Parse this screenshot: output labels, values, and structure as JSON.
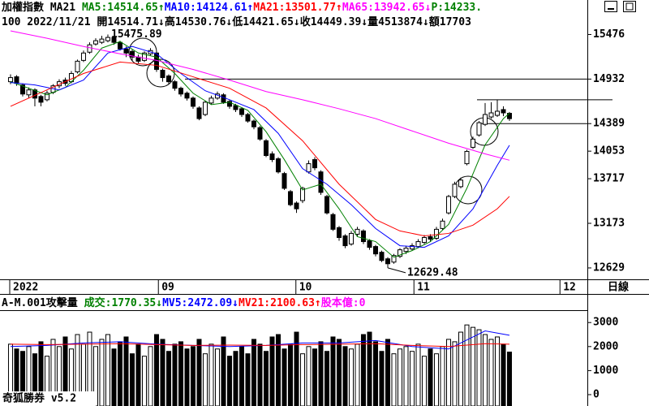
{
  "header": {
    "line1": [
      {
        "text": "加權指數 MA21 ",
        "color": "#000000"
      },
      {
        "text": "MA5:14514.65↑",
        "color": "#008000"
      },
      {
        "text": "MA10:14124.61↑",
        "color": "#0000ff"
      },
      {
        "text": "MA21:13501.77↑",
        "color": "#ff0000"
      },
      {
        "text": "MA65:13942.65↓",
        "color": "#ff00ff"
      },
      {
        "text": "P:14233.",
        "color": "#008000"
      }
    ],
    "line2": [
      {
        "text": "100 2022/11/21 開14514.71↓高14530.76↓低14421.65↓收14449.39↓量4513874↓額17703",
        "color": "#000000"
      }
    ],
    "volume_line": [
      {
        "text": "A-M.001攻擊量 ",
        "color": "#000000"
      },
      {
        "text": "成交:1770.35↓",
        "color": "#008000"
      },
      {
        "text": "MV5:2472.09↓",
        "color": "#0000ff"
      },
      {
        "text": "MV21:2100.63↑",
        "color": "#ff0000"
      },
      {
        "text": "股本億:0",
        "color": "#ff00ff"
      }
    ],
    "period": "日線",
    "app": "奇狐勝券 v5.2"
  },
  "chart_data": [
    {
      "type": "candlestick",
      "open": [
        14900,
        14960,
        14860,
        14740,
        14800,
        14720,
        14680,
        14770,
        14850,
        14920,
        14900,
        15020,
        15160,
        15260,
        15360,
        15380,
        15400,
        15440,
        15380,
        15300,
        15270,
        15200,
        15160,
        15240,
        15250,
        15040,
        14970,
        14900,
        14820,
        14760,
        14700,
        14580,
        14500,
        14640,
        14700,
        14740,
        14660,
        14610,
        14570,
        14500,
        14420,
        14340,
        14180,
        14020,
        13960,
        13780,
        13560,
        13420,
        13450,
        13800,
        13950,
        13800,
        13500,
        13280,
        13120,
        13020,
        12920,
        13040,
        13080,
        12960,
        12890,
        12820,
        12740,
        12700,
        12770,
        12830,
        12860,
        12890,
        12940,
        13010,
        12990,
        13110,
        13300,
        13500,
        13620,
        13900,
        14100,
        14250,
        14380,
        14470,
        14490,
        14560,
        14514.71
      ],
      "high": [
        14990,
        14980,
        14880,
        14830,
        14820,
        14740,
        14790,
        14870,
        14930,
        14950,
        15030,
        15170,
        15280,
        15380,
        15430,
        15460,
        15475.89,
        15460,
        15400,
        15330,
        15290,
        15230,
        15270,
        15310,
        15260,
        15060,
        14990,
        14920,
        14840,
        14780,
        14720,
        14600,
        14670,
        14730,
        14780,
        14760,
        14680,
        14630,
        14590,
        14520,
        14440,
        14360,
        14200,
        14050,
        13980,
        13800,
        13580,
        13440,
        13620,
        13940,
        13980,
        13820,
        13520,
        13300,
        13140,
        13040,
        13080,
        13130,
        13100,
        12980,
        12910,
        12840,
        12760,
        12800,
        12870,
        12900,
        12930,
        12980,
        13030,
        13040,
        13130,
        13230,
        13520,
        13680,
        13730,
        14070,
        14230,
        14420,
        14640,
        14650,
        14680,
        14600,
        14530.76
      ],
      "low": [
        14870,
        14850,
        14720,
        14700,
        14600,
        14600,
        14660,
        14750,
        14820,
        14850,
        14880,
        15000,
        15140,
        15240,
        15340,
        15360,
        15380,
        15350,
        15280,
        15200,
        15150,
        15120,
        15140,
        15220,
        15020,
        14900,
        14870,
        14790,
        14720,
        14670,
        14570,
        14430,
        14480,
        14620,
        14680,
        14630,
        14570,
        14530,
        14470,
        14400,
        14320,
        14180,
        13980,
        13920,
        13780,
        13580,
        13380,
        13300,
        13420,
        13780,
        13820,
        13520,
        13280,
        13080,
        12960,
        12870,
        12900,
        13010,
        12920,
        12850,
        12770,
        12700,
        12629.48,
        12680,
        12750,
        12800,
        12840,
        12870,
        12920,
        12950,
        12970,
        13090,
        13280,
        13480,
        13600,
        13880,
        14080,
        14230,
        14360,
        14450,
        14470,
        14480,
        14421.65
      ],
      "close": [
        14950,
        14880,
        14750,
        14800,
        14700,
        14650,
        14760,
        14850,
        14900,
        14880,
        15000,
        15150,
        15250,
        15350,
        15400,
        15420,
        15440,
        15380,
        15300,
        15250,
        15200,
        15150,
        15250,
        15280,
        15050,
        14950,
        14900,
        14820,
        14750,
        14700,
        14600,
        14450,
        14650,
        14700,
        14750,
        14650,
        14600,
        14560,
        14500,
        14420,
        14350,
        14200,
        14000,
        13950,
        13800,
        13600,
        13400,
        13350,
        13600,
        13900,
        13850,
        13550,
        13300,
        13100,
        13000,
        12900,
        13050,
        13100,
        12950,
        12880,
        12800,
        12720,
        12680,
        12780,
        12850,
        12870,
        12900,
        12950,
        13000,
        12980,
        13100,
        13200,
        13500,
        13650,
        13700,
        14050,
        14200,
        14400,
        14500,
        14520,
        14540,
        14520,
        14449.39
      ],
      "series": [
        {
          "color": "#008000",
          "x": [
            0,
            3,
            6,
            9,
            12,
            15,
            18,
            21,
            24,
            27,
            30,
            33,
            36,
            39,
            42,
            45,
            48,
            51,
            54,
            57,
            60,
            63,
            66,
            69,
            72,
            75,
            78,
            81,
            82
          ],
          "values": [
            14900,
            14820,
            14740,
            14830,
            15040,
            15310,
            15390,
            15250,
            15200,
            15000,
            14760,
            14620,
            14650,
            14550,
            14290,
            13950,
            13580,
            13650,
            13350,
            13010,
            12950,
            12760,
            12840,
            12950,
            13160,
            13600,
            14130,
            14450,
            14514.65
          ]
        },
        {
          "color": "#0000ff",
          "x": [
            0,
            4,
            8,
            12,
            16,
            20,
            24,
            28,
            32,
            36,
            40,
            44,
            48,
            52,
            56,
            60,
            64,
            68,
            72,
            76,
            80,
            82
          ],
          "values": [
            14890,
            14860,
            14800,
            14920,
            15250,
            15330,
            15240,
            15000,
            14790,
            14680,
            14560,
            14270,
            13840,
            13650,
            13400,
            13110,
            12900,
            12880,
            13020,
            13350,
            13880,
            14124.61
          ]
        },
        {
          "color": "#ff0000",
          "x": [
            0,
            6,
            12,
            18,
            24,
            30,
            36,
            42,
            48,
            54,
            60,
            64,
            68,
            72,
            76,
            80,
            82
          ],
          "values": [
            14600,
            14800,
            15000,
            15140,
            15100,
            14960,
            14820,
            14580,
            14180,
            13650,
            13220,
            13080,
            13020,
            13050,
            13150,
            13350,
            13501.77
          ]
        },
        {
          "color": "#ff00ff",
          "x": [
            0,
            6,
            12,
            18,
            24,
            30,
            36,
            42,
            48,
            54,
            60,
            66,
            72,
            78,
            82
          ],
          "values": [
            15520,
            15430,
            15330,
            15240,
            15160,
            15050,
            14920,
            14780,
            14680,
            14570,
            14450,
            14300,
            14150,
            14020,
            13942.65
          ]
        }
      ],
      "reference_lines": [
        14932,
        14680,
        14389
      ],
      "xlim": [
        -1.73,
        94.8
      ],
      "xticks": [
        {
          "value": -0.13,
          "label": "2022"
        },
        {
          "value": 24.3,
          "label": "09"
        },
        {
          "value": 46.9,
          "label": "10"
        },
        {
          "value": 66.3,
          "label": "11"
        },
        {
          "value": 90.3,
          "label": "12"
        }
      ],
      "ylim": [
        12480,
        15540
      ],
      "yticks": [
        15476,
        14932,
        14389,
        14053,
        13717,
        13173,
        12629
      ],
      "up_color": "#ffffff",
      "down_color": "#000000"
    },
    {
      "type": "bar",
      "values": [
        2100,
        1900,
        1800,
        2000,
        1700,
        2200,
        1600,
        2300,
        2000,
        2400,
        1900,
        2500,
        2100,
        2600,
        2000,
        2300,
        2500,
        1900,
        2200,
        2400,
        1700,
        2100,
        1600,
        2000,
        2500,
        2300,
        1800,
        2100,
        2200,
        1900,
        2000,
        2300,
        1700,
        2100,
        1900,
        2400,
        1600,
        1800,
        2000,
        1700,
        2300,
        2100,
        1800,
        2400,
        2500,
        1900,
        2100,
        2600,
        1700,
        2000,
        1900,
        2200,
        1800,
        2400,
        2300,
        2000,
        1900,
        2100,
        2500,
        2600,
        2200,
        1800,
        2300,
        1700,
        1900,
        2000,
        1800,
        2100,
        1600,
        1900,
        1700,
        2000,
        2300,
        2200,
        2600,
        2900,
        2800,
        2700,
        2500,
        2300,
        2400,
        2100,
        1770.35
      ],
      "series": [
        {
          "color": "#0000ff",
          "x": [
            0,
            6,
            12,
            18,
            24,
            30,
            36,
            42,
            48,
            54,
            60,
            66,
            72,
            78,
            82
          ],
          "values": [
            2000,
            2050,
            2150,
            2200,
            2100,
            2050,
            2000,
            2050,
            2150,
            2150,
            2250,
            2000,
            1900,
            2650,
            2472.09
          ]
        },
        {
          "color": "#ff0000",
          "x": [
            0,
            6,
            12,
            18,
            24,
            30,
            36,
            42,
            48,
            54,
            60,
            66,
            72,
            78,
            82
          ],
          "values": [
            2100,
            2080,
            2100,
            2120,
            2080,
            2050,
            2060,
            2050,
            2080,
            2100,
            2120,
            2050,
            2000,
            2120,
            2100.63
          ]
        }
      ],
      "xlim": [
        -1.73,
        94.8
      ],
      "ylim": [
        0,
        3480
      ],
      "yticks": [
        3000,
        2000,
        1000,
        0
      ]
    }
  ]
}
